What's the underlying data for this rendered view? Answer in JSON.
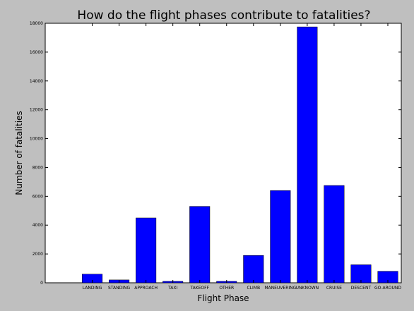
{
  "chart_data": {
    "type": "bar",
    "title": "How do the flight phases contribute to fatalities?",
    "xlabel": "Flight Phase",
    "ylabel": "Number of fatalities",
    "categories": [
      "LANDING",
      "STANDING",
      "APPROACH",
      "TAXI",
      "TAKEOFF",
      "OTHER",
      "CLIMB",
      "MANEUVERING",
      "UNKNOWN",
      "CRUISE",
      "DESCENT",
      "GO-AROUND"
    ],
    "values": [
      600,
      200,
      4500,
      100,
      5300,
      100,
      1900,
      6400,
      17750,
      6750,
      1250,
      800
    ],
    "ylim": [
      0,
      18000
    ],
    "yticks": [
      0,
      2000,
      4000,
      6000,
      8000,
      10000,
      12000,
      14000,
      16000,
      18000
    ],
    "grid": false,
    "bar_color": "#0000ff"
  }
}
